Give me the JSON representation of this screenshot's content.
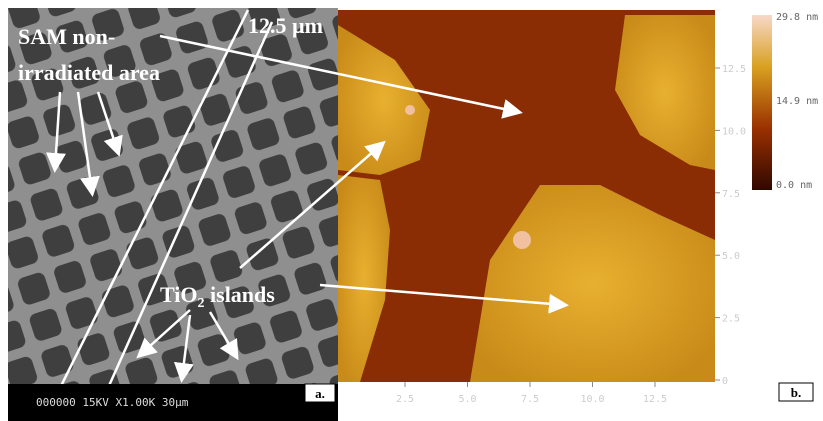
{
  "panel_a": {
    "label": "a.",
    "scale_bar": "12.5 µm",
    "annotation_top": [
      "SAM non-",
      "irradiated area"
    ],
    "annotation_bottom": {
      "text": "TiO",
      "subscript": "2",
      "suffix": " islands"
    },
    "footer": "000000 15KV X1.00K 30µm"
  },
  "panel_b": {
    "label": "b.",
    "y_ticks": [
      "12.5",
      "10.0",
      "7.5",
      "5.0",
      "2.5",
      "0"
    ],
    "x_ticks": [
      "2.5",
      "5.0",
      "7.5",
      "10.0",
      "12.5"
    ],
    "colorbar_ticks": [
      "29.8 nm",
      "14.9 nm",
      "0.0 nm"
    ]
  }
}
